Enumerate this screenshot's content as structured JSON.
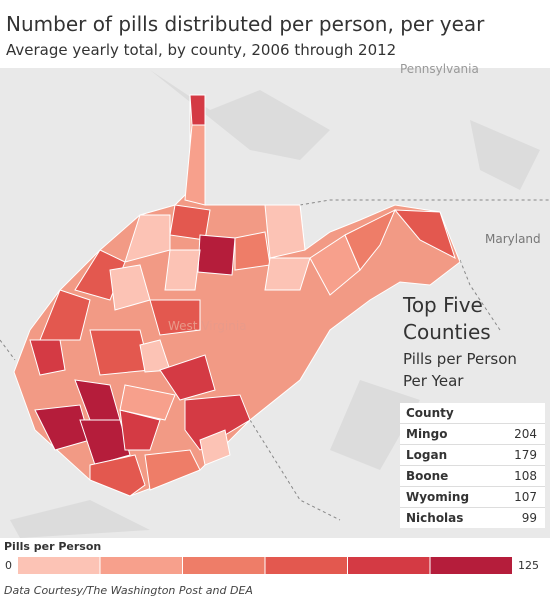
{
  "title": "Number of pills distributed per person, per year",
  "subtitle": "Average yearly total, by county, 2006 through 2012",
  "map_labels": {
    "pennsylvania": "Pennsylvania",
    "maryland": "Maryland",
    "state": "West Virginia"
  },
  "panel": {
    "title": "Top Five Counties",
    "subtitle": "Pills per Person Per Year",
    "column_header": "County",
    "rows": [
      {
        "county": "Mingo",
        "value": 204
      },
      {
        "county": "Logan",
        "value": 179
      },
      {
        "county": "Boone",
        "value": 108
      },
      {
        "county": "Wyoming",
        "value": 107
      },
      {
        "county": "Nicholas",
        "value": 99
      }
    ]
  },
  "legend": {
    "title": "Pills per Person",
    "min": 0,
    "max": 125,
    "colors": [
      "#fcc3b5",
      "#f7a08c",
      "#ee7d68",
      "#e3584f",
      "#d43a44",
      "#b51d3b"
    ]
  },
  "footer": "Data Courtesy/The Washington Post and DEA"
}
